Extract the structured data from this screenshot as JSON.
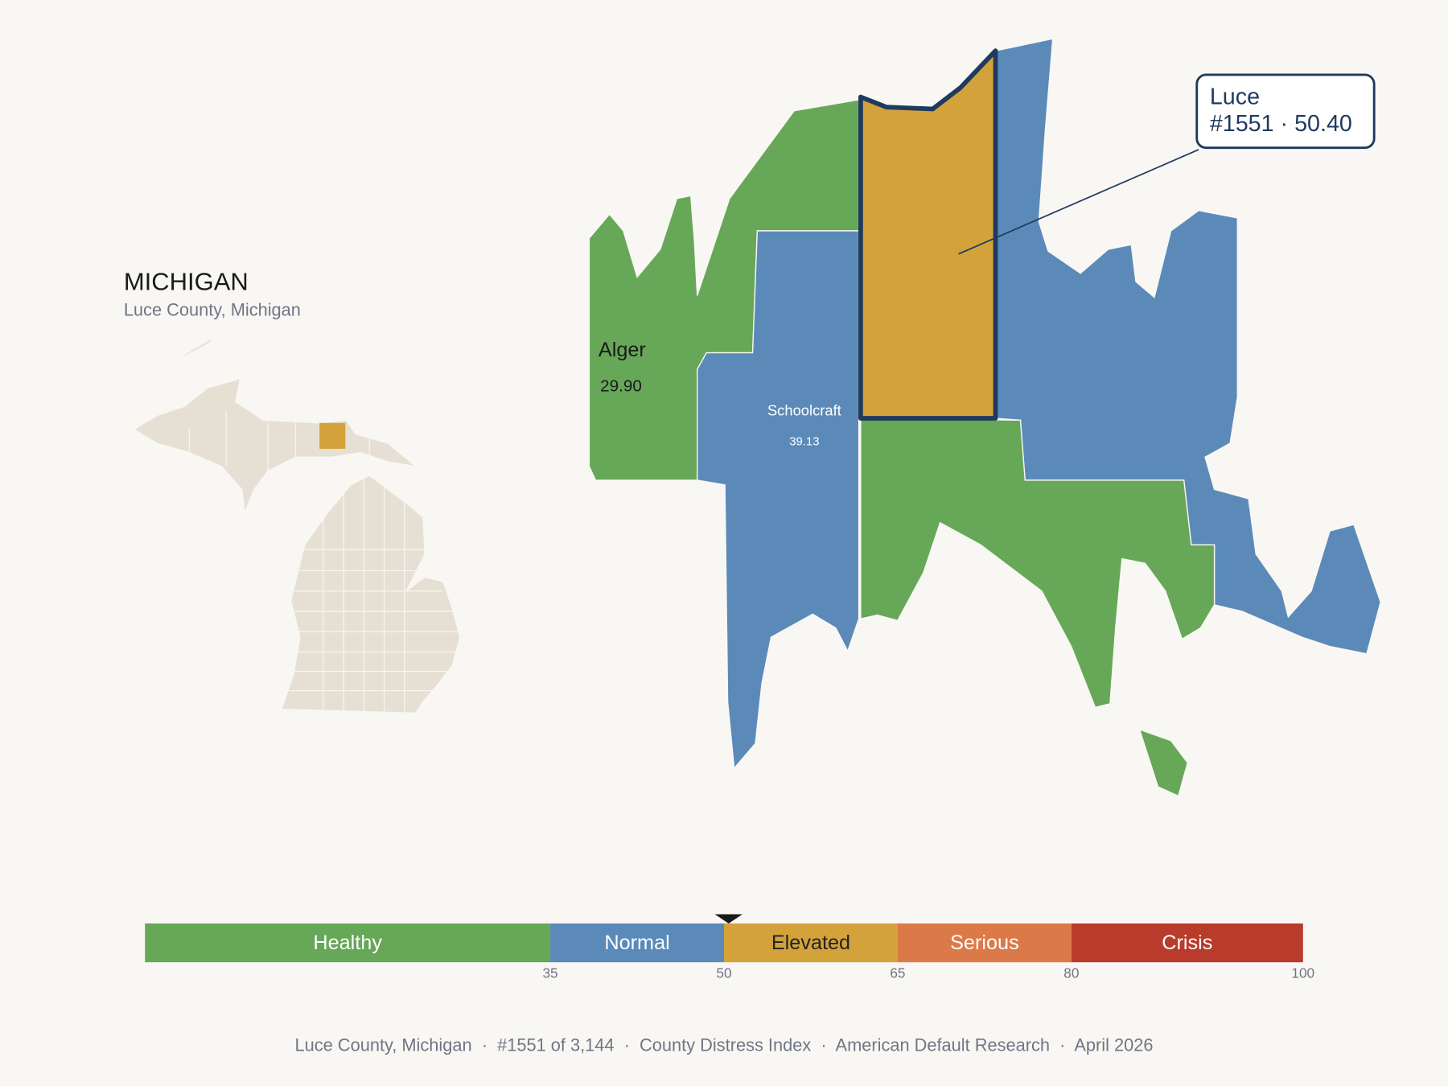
{
  "header": {
    "title": "MICHIGAN",
    "subtitle": "Luce County, Michigan"
  },
  "counties": [
    {
      "name": "Alger",
      "score": "29.90"
    },
    {
      "name": "Schoolcraft",
      "score": "39.13"
    }
  ],
  "callout": {
    "name": "Luce",
    "detail": "#1551 · 50.40"
  },
  "scale": {
    "xlim": [
      0,
      100
    ],
    "ticks": [
      35,
      50,
      65,
      80,
      100
    ],
    "marker": 50.4,
    "bands": [
      {
        "name": "Healthy",
        "color": "#67a758",
        "text_color": "#ffffff"
      },
      {
        "name": "Normal",
        "color": "#5b8ab9",
        "text_color": "#ffffff"
      },
      {
        "name": "Elevated",
        "color": "#d3a23a",
        "text_color": "#222222"
      },
      {
        "name": "Serious",
        "color": "#dc7948",
        "text_color": "#ffffff"
      },
      {
        "name": "Crisis",
        "color": "#b93b2b",
        "text_color": "#ffffff"
      }
    ]
  },
  "footer": "Luce County, Michigan  ·  #1551 of 3,144  ·  County Distress Index  ·  American Default Research  ·  April 2026"
}
